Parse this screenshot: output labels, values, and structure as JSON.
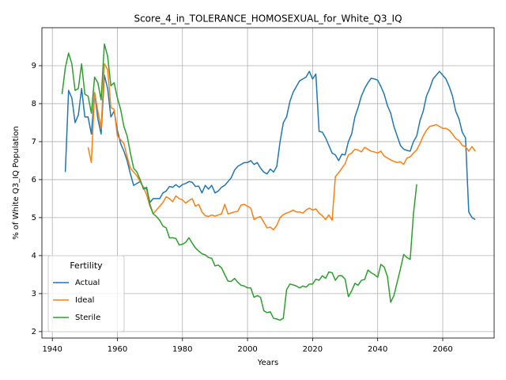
{
  "chart_data": {
    "type": "line",
    "title": "Score_4_in_TOLERANCE_HOMOSEXUAL_for_White_Q3_IQ",
    "xlabel": "Years",
    "ylabel": "% of White Q3_IQ Population",
    "legend_title": "Fertility",
    "legend": "lower left",
    "grid": true,
    "xlim": [
      1936.8,
      2075.8
    ],
    "ylim": [
      1.83,
      10.0
    ],
    "xticks": [
      1940,
      1960,
      1980,
      2000,
      2020,
      2040,
      2060
    ],
    "yticks": [
      2,
      3,
      4,
      5,
      6,
      7,
      8,
      9
    ],
    "x": [
      1943,
      1944,
      1945,
      1946,
      1947,
      1948,
      1949,
      1950,
      1951,
      1952,
      1953,
      1954,
      1955,
      1956,
      1957,
      1958,
      1959,
      1960,
      1961,
      1962,
      1963,
      1964,
      1965,
      1966,
      1967,
      1968,
      1969,
      1970,
      1971,
      1972,
      1973,
      1974,
      1975,
      1976,
      1977,
      1978,
      1979,
      1980,
      1981,
      1982,
      1983,
      1984,
      1985,
      1986,
      1987,
      1988,
      1989,
      1990,
      1991,
      1992,
      1993,
      1994,
      1995,
      1996,
      1997,
      1998,
      1999,
      2000,
      2001,
      2002,
      2003,
      2004,
      2005,
      2006,
      2007,
      2008,
      2009,
      2010,
      2011,
      2012,
      2013,
      2014,
      2015,
      2016,
      2017,
      2018,
      2019,
      2020,
      2021,
      2022,
      2023,
      2024,
      2025,
      2026,
      2027,
      2028,
      2029,
      2030,
      2031,
      2032,
      2033,
      2034,
      2035,
      2036,
      2037,
      2038,
      2039,
      2040,
      2041,
      2042,
      2043,
      2044,
      2045,
      2046,
      2047,
      2048,
      2049,
      2050,
      2051,
      2052,
      2053,
      2054,
      2055,
      2056,
      2057,
      2058,
      2059,
      2060,
      2061,
      2062,
      2063,
      2064,
      2065,
      2066,
      2067,
      2068,
      2069,
      2070
    ],
    "series": [
      {
        "name": "Actual",
        "color": "#1f77b4",
        "values": [
          null,
          6.2,
          8.35,
          8.15,
          7.5,
          7.7,
          8.4,
          7.65,
          7.65,
          7.2,
          8.3,
          7.6,
          7.2,
          8.75,
          8.4,
          7.65,
          7.8,
          7.3,
          6.95,
          6.75,
          6.5,
          6.15,
          5.85,
          5.9,
          5.95,
          5.8,
          5.75,
          5.4,
          5.5,
          5.5,
          5.5,
          5.65,
          5.7,
          5.82,
          5.8,
          5.87,
          5.8,
          5.87,
          5.9,
          5.95,
          5.93,
          5.82,
          5.83,
          5.65,
          5.85,
          5.75,
          5.85,
          5.65,
          5.7,
          5.8,
          5.85,
          5.95,
          6.05,
          6.25,
          6.35,
          6.4,
          6.45,
          6.45,
          6.5,
          6.4,
          6.45,
          6.3,
          6.2,
          6.15,
          6.28,
          6.2,
          6.35,
          7.0,
          7.5,
          7.65,
          8.05,
          8.3,
          8.45,
          8.6,
          8.65,
          8.7,
          8.85,
          8.65,
          8.78,
          7.27,
          7.25,
          7.1,
          6.9,
          6.7,
          6.65,
          6.5,
          6.67,
          6.65,
          7.0,
          7.2,
          7.65,
          7.9,
          8.2,
          8.4,
          8.55,
          8.67,
          8.65,
          8.62,
          8.45,
          8.25,
          7.95,
          7.75,
          7.4,
          7.15,
          6.9,
          6.8,
          6.77,
          6.75,
          7.0,
          7.15,
          7.55,
          7.8,
          8.2,
          8.4,
          8.65,
          8.75,
          8.85,
          8.75,
          8.65,
          8.45,
          8.2,
          7.8,
          7.6,
          7.25,
          7.1,
          5.15,
          5.0,
          4.95
        ]
      },
      {
        "name": "Ideal",
        "color": "#ff7f0e",
        "values": [
          null,
          null,
          null,
          null,
          null,
          null,
          null,
          null,
          6.85,
          6.45,
          8.3,
          7.8,
          7.35,
          9.05,
          8.9,
          7.9,
          7.85,
          7.15,
          7.05,
          6.95,
          6.6,
          6.3,
          6.2,
          6.1,
          5.95,
          5.8,
          5.6,
          5.3,
          5.1,
          5.2,
          5.3,
          5.4,
          5.55,
          5.5,
          5.42,
          5.57,
          5.5,
          5.47,
          5.38,
          5.45,
          5.5,
          5.3,
          5.35,
          5.15,
          5.05,
          5.03,
          5.07,
          5.04,
          5.07,
          5.1,
          5.35,
          5.1,
          5.12,
          5.15,
          5.17,
          5.33,
          5.35,
          5.3,
          5.25,
          4.95,
          5.0,
          5.03,
          4.88,
          4.73,
          4.75,
          4.68,
          4.8,
          5.0,
          5.08,
          5.12,
          5.15,
          5.2,
          5.15,
          5.15,
          5.12,
          5.2,
          5.25,
          5.2,
          5.23,
          5.12,
          5.05,
          4.95,
          5.07,
          4.93,
          6.08,
          6.18,
          6.3,
          6.42,
          6.65,
          6.7,
          6.8,
          6.78,
          6.73,
          6.85,
          6.8,
          6.75,
          6.73,
          6.7,
          6.75,
          6.62,
          6.57,
          6.52,
          6.48,
          6.45,
          6.47,
          6.4,
          6.57,
          6.6,
          6.7,
          6.78,
          6.95,
          7.15,
          7.3,
          7.4,
          7.42,
          7.45,
          7.4,
          7.35,
          7.35,
          7.3,
          7.2,
          7.08,
          7.03,
          6.9,
          6.87,
          6.75,
          6.87,
          6.75
        ]
      },
      {
        "name": "Sterile",
        "color": "#2ca02c",
        "values": [
          8.25,
          8.95,
          9.33,
          9.05,
          8.35,
          8.4,
          9.05,
          8.25,
          8.2,
          7.75,
          8.7,
          8.55,
          8.1,
          9.57,
          9.25,
          8.47,
          8.55,
          8.15,
          7.85,
          7.4,
          7.15,
          6.7,
          6.3,
          6.2,
          6.0,
          5.75,
          5.8,
          5.35,
          5.1,
          5.03,
          4.93,
          4.78,
          4.73,
          4.47,
          4.47,
          4.45,
          4.28,
          4.3,
          4.35,
          4.47,
          4.33,
          4.2,
          4.12,
          4.05,
          4.02,
          3.95,
          3.93,
          3.73,
          3.75,
          3.68,
          3.5,
          3.33,
          3.32,
          3.4,
          3.3,
          3.22,
          3.2,
          3.15,
          3.15,
          2.9,
          2.95,
          2.9,
          2.55,
          2.5,
          2.52,
          2.35,
          2.33,
          2.3,
          2.35,
          3.1,
          3.25,
          3.23,
          3.2,
          3.15,
          3.2,
          3.17,
          3.25,
          3.25,
          3.38,
          3.35,
          3.47,
          3.4,
          3.57,
          3.55,
          3.35,
          3.47,
          3.47,
          3.38,
          2.92,
          3.07,
          3.27,
          3.22,
          3.35,
          3.37,
          3.62,
          3.55,
          3.5,
          3.43,
          3.77,
          3.7,
          3.45,
          2.77,
          2.95,
          3.3,
          3.65,
          4.03,
          3.95,
          3.9,
          5.1,
          5.88,
          null,
          null,
          null,
          null,
          null,
          null,
          null,
          null,
          null,
          null,
          null,
          null,
          null,
          null,
          null,
          null,
          null,
          null
        ]
      }
    ]
  }
}
